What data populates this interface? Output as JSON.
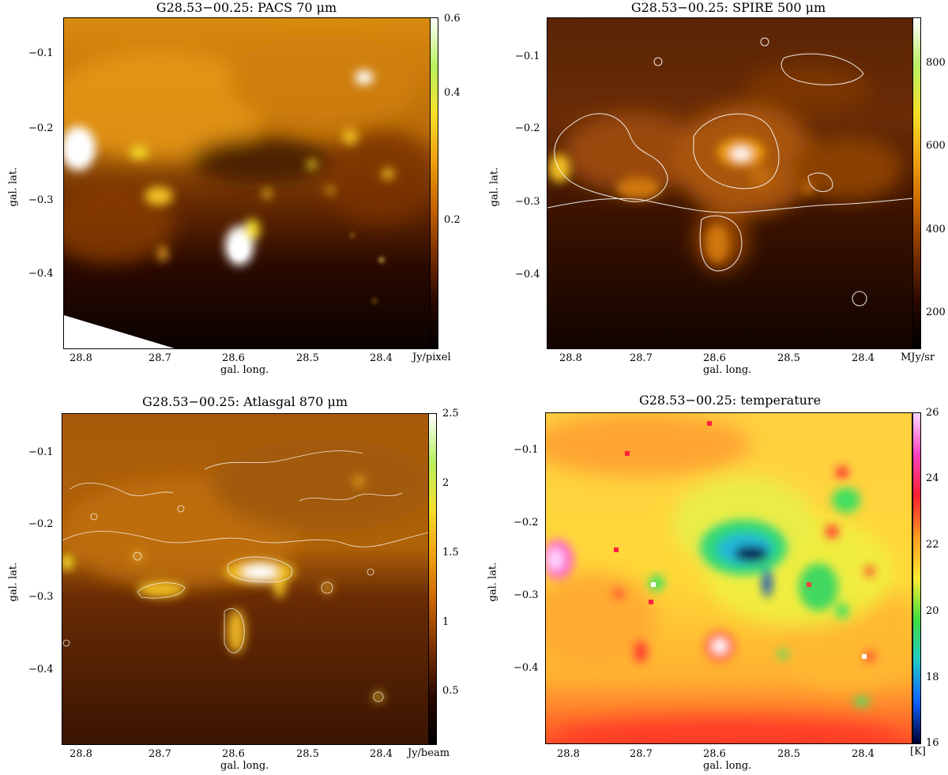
{
  "panels": [
    {
      "id": "pacs",
      "title": "G28.53−00.25: PACS 70 μm",
      "unit": "Jy/pixel",
      "cbar_ticks": [
        "0.6",
        "0.4",
        "0.2"
      ],
      "cbar_gradient": [
        "#ffffff",
        "#b8f060",
        "#f5e02a",
        "#f0a010",
        "#c86400",
        "#7a3000",
        "#2a0800",
        "#000000"
      ],
      "xlabel": "gal. long.",
      "ylabel": "gal. lat."
    },
    {
      "id": "spire",
      "title": "G28.53−00.25: SPIRE 500 μm",
      "unit": "MJy/sr",
      "cbar_ticks": [
        "800",
        "600",
        "400",
        "200"
      ],
      "cbar_gradient": [
        "#ffffff",
        "#b8f060",
        "#f5e02a",
        "#f0a010",
        "#c86400",
        "#7a3000",
        "#2a0800",
        "#000000"
      ],
      "xlabel": "gal. long.",
      "ylabel": "gal. lat."
    },
    {
      "id": "atlasgal",
      "title": "G28.53−00.25: Atlasgal 870 μm",
      "unit": "Jy/beam",
      "cbar_ticks": [
        "2.5",
        "2",
        "1.5",
        "1",
        "0.5"
      ],
      "cbar_gradient": [
        "#ffffff",
        "#b8f060",
        "#f5e02a",
        "#f0a010",
        "#c86400",
        "#7a3000",
        "#2a0800",
        "#000000"
      ],
      "xlabel": "gal. long.",
      "ylabel": "gal. lat."
    },
    {
      "id": "temperature",
      "title": "G28.53−00.25: temperature",
      "unit": "[K]",
      "cbar_ticks": [
        "26",
        "24",
        "22",
        "20",
        "18",
        "16"
      ],
      "cbar_gradient": [
        "#ffd8ff",
        "#ff40c0",
        "#ff2030",
        "#ff9a20",
        "#ffe830",
        "#40e040",
        "#20c8c8",
        "#1060ff",
        "#000030"
      ],
      "xlabel": "gal. long.",
      "ylabel": "gal. lat."
    }
  ],
  "chart_data": [
    {
      "type": "heatmap",
      "title": "G28.53−00.25: PACS 70 μm",
      "xlabel": "gal. long.",
      "ylabel": "gal. lat.",
      "x_ticks": [
        "28.8",
        "28.7",
        "28.6",
        "28.5",
        "28.4"
      ],
      "y_ticks": [
        "−0.1",
        "−0.2",
        "−0.3",
        "−0.4"
      ],
      "xlim": [
        28.83,
        28.35
      ],
      "ylim": [
        -0.5,
        -0.05
      ],
      "colorbar": {
        "label": "Jy/pixel",
        "range": [
          0.0,
          0.6
        ],
        "ticks": [
          0.2,
          0.4,
          0.6
        ]
      }
    },
    {
      "type": "heatmap",
      "title": "G28.53−00.25: SPIRE 500 μm",
      "xlabel": "gal. long.",
      "ylabel": "gal. lat.",
      "x_ticks": [
        "28.8",
        "28.7",
        "28.6",
        "28.5",
        "28.4"
      ],
      "y_ticks": [
        "−0.1",
        "−0.2",
        "−0.3",
        "−0.4"
      ],
      "xlim": [
        28.83,
        28.35
      ],
      "ylim": [
        -0.5,
        -0.05
      ],
      "colorbar": {
        "label": "MJy/sr",
        "range": [
          120,
          900
        ],
        "ticks": [
          200,
          400,
          600,
          800
        ]
      }
    },
    {
      "type": "heatmap",
      "title": "G28.53−00.25: Atlasgal 870 μm",
      "xlabel": "gal. long.",
      "ylabel": "gal. lat.",
      "x_ticks": [
        "28.8",
        "28.7",
        "28.6",
        "28.5",
        "28.4"
      ],
      "y_ticks": [
        "−0.1",
        "−0.2",
        "−0.3",
        "−0.4"
      ],
      "xlim": [
        28.83,
        28.35
      ],
      "ylim": [
        -0.5,
        -0.05
      ],
      "colorbar": {
        "label": "Jy/beam",
        "range": [
          0.1,
          2.5
        ],
        "ticks": [
          0.5,
          1,
          1.5,
          2,
          2.5
        ]
      }
    },
    {
      "type": "heatmap",
      "title": "G28.53−00.25: temperature",
      "xlabel": "gal. long.",
      "ylabel": "gal. lat.",
      "x_ticks": [
        "28.8",
        "28.7",
        "28.6",
        "28.5",
        "28.4"
      ],
      "y_ticks": [
        "−0.1",
        "−0.2",
        "−0.3",
        "−0.4"
      ],
      "xlim": [
        28.83,
        28.35
      ],
      "ylim": [
        -0.5,
        -0.05
      ],
      "colorbar": {
        "label": "[K]",
        "range": [
          16,
          26
        ],
        "ticks": [
          16,
          18,
          20,
          22,
          24,
          26
        ]
      }
    }
  ]
}
